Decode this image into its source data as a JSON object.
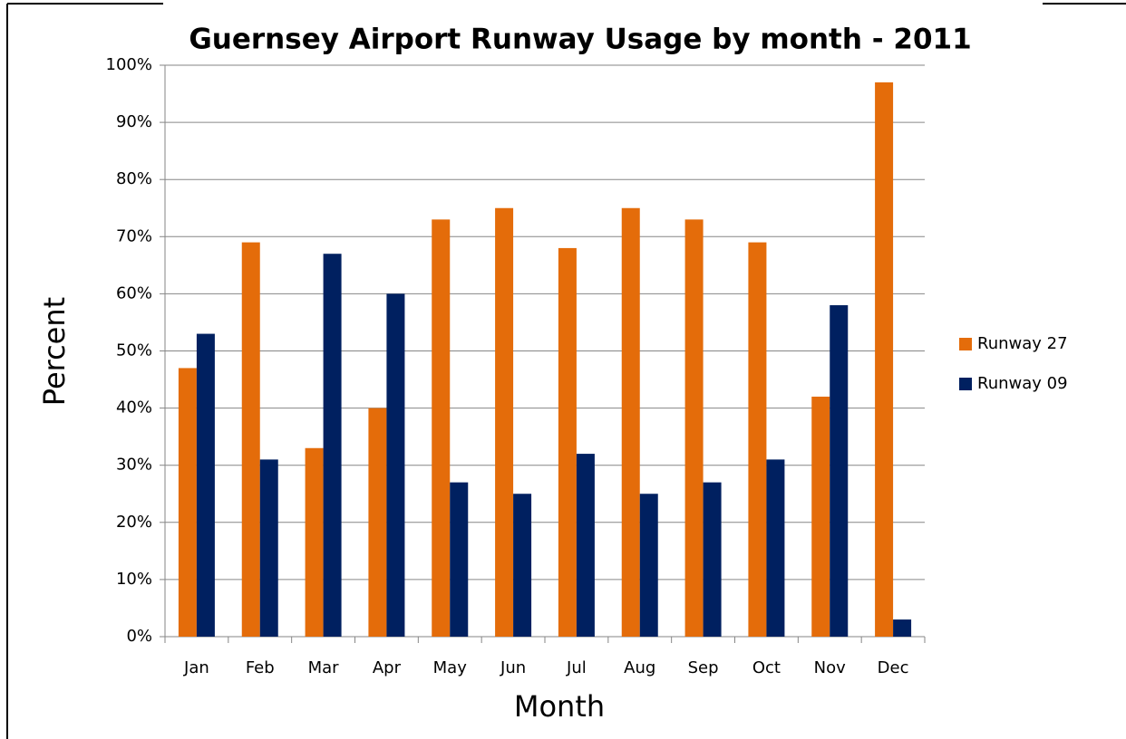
{
  "chart_data": {
    "type": "bar",
    "title": "Guernsey Airport Runway Usage by month - 2011",
    "x_label": "Month",
    "y_label": "Percent",
    "categories": [
      "Jan",
      "Feb",
      "Mar",
      "Apr",
      "May",
      "Jun",
      "Jul",
      "Aug",
      "Sep",
      "Oct",
      "Nov",
      "Dec"
    ],
    "series": [
      {
        "name": "Runway 27",
        "color": "#e46c0a",
        "values": [
          47,
          69,
          33,
          40,
          73,
          75,
          68,
          75,
          73,
          69,
          42,
          97
        ]
      },
      {
        "name": "Runway 09",
        "color": "#002060",
        "values": [
          53,
          31,
          67,
          60,
          27,
          25,
          32,
          25,
          27,
          31,
          58,
          3
        ]
      }
    ],
    "ylim": [
      0,
      100
    ],
    "yticks": [
      {
        "value": 0,
        "label": "0%"
      },
      {
        "value": 10,
        "label": "10%"
      },
      {
        "value": 20,
        "label": "20%"
      },
      {
        "value": 30,
        "label": "30%"
      },
      {
        "value": 40,
        "label": "40%"
      },
      {
        "value": 50,
        "label": "50%"
      },
      {
        "value": 60,
        "label": "60%"
      },
      {
        "value": 70,
        "label": "70%"
      },
      {
        "value": 80,
        "label": "80%"
      },
      {
        "value": 90,
        "label": "90%"
      },
      {
        "value": 100,
        "label": "100%"
      }
    ],
    "grid": true,
    "legend": "right"
  }
}
